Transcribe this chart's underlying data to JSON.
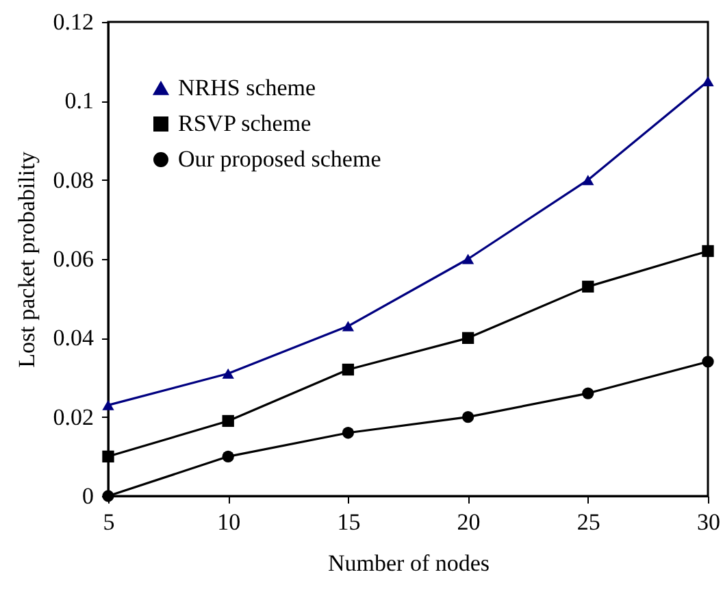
{
  "chart_data": {
    "type": "line",
    "xlabel": "Number of nodes",
    "ylabel": "Lost packet probability",
    "x": [
      5,
      10,
      15,
      20,
      25,
      30
    ],
    "xlim": [
      5,
      30
    ],
    "xticks": [
      5,
      10,
      15,
      20,
      25,
      30
    ],
    "ylim": [
      0,
      0.12
    ],
    "yticks": [
      0,
      0.02,
      0.04,
      0.06,
      0.08,
      0.1,
      0.12
    ],
    "grid": false,
    "legend": "top left",
    "series": [
      {
        "name": "NRHS scheme",
        "color": "#000080",
        "marker": "triangle",
        "values": [
          0.023,
          0.031,
          0.043,
          0.06,
          0.08,
          0.105
        ]
      },
      {
        "name": "RSVP scheme",
        "color": "#000000",
        "marker": "square",
        "values": [
          0.01,
          0.019,
          0.032,
          0.04,
          0.053,
          0.062
        ]
      },
      {
        "name": "Our proposed scheme",
        "color": "#000000",
        "marker": "circle",
        "values": [
          0,
          0.01,
          0.016,
          0.02,
          0.026,
          0.034
        ]
      }
    ]
  }
}
